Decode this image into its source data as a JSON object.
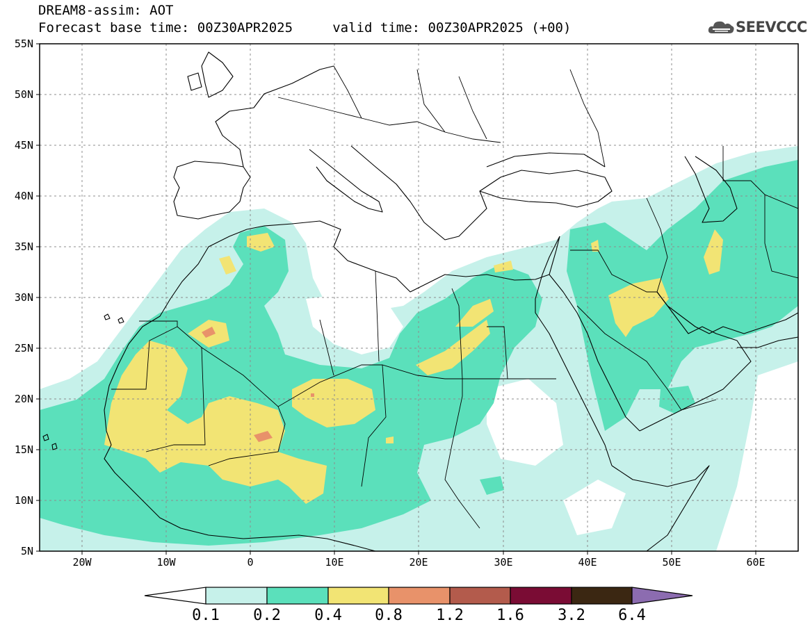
{
  "header": {
    "line1": "DREAM8-assim: AOT",
    "line2": "Forecast base time: 00Z30APR2025     valid time: 00Z30APR2025 (+00)"
  },
  "logo": {
    "text": "SEEVCCC",
    "icon": "cloud-logo-icon"
  },
  "map": {
    "lon_range": [
      -25,
      65
    ],
    "lat_range": [
      5,
      55
    ],
    "lat_ticks": [
      "55N",
      "50N",
      "45N",
      "40N",
      "35N",
      "30N",
      "25N",
      "20N",
      "15N",
      "10N",
      "5N"
    ],
    "lon_ticks": [
      "20W",
      "10W",
      "0",
      "10E",
      "20E",
      "30E",
      "40E",
      "50E",
      "60E"
    ]
  },
  "colorbar": {
    "levels": [
      "0.1",
      "0.2",
      "0.4",
      "0.8",
      "1.2",
      "1.6",
      "3.2",
      "6.4"
    ],
    "colors": [
      "#c6f1ea",
      "#5be0bb",
      "#f2e474",
      "#e8926a",
      "#b35b4c",
      "#7a0c34",
      "#3b2712",
      "#8c6cb0"
    ]
  },
  "colors": {
    "aot_0_1": "#c6f1ea",
    "aot_0_2": "#5be0bb",
    "aot_0_4": "#f2e474",
    "aot_0_8": "#e8926a"
  }
}
